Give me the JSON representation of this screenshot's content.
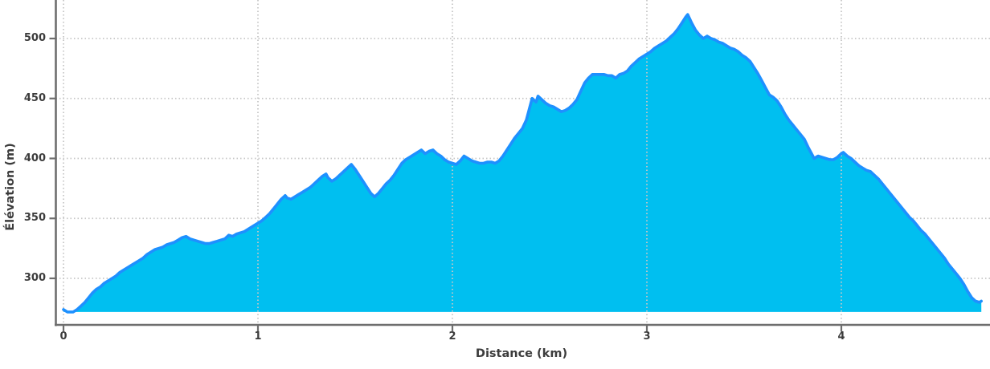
{
  "chart_data": {
    "type": "area",
    "title": "",
    "xlabel": "Distance (km)",
    "ylabel": "Élévation (m)",
    "xticks": [
      0,
      1,
      2,
      3,
      4
    ],
    "xtick_labels": [
      "0",
      "1",
      "2",
      "3",
      "4"
    ],
    "yticks": [
      300,
      350,
      400,
      450,
      500
    ],
    "ytick_labels": [
      "300",
      "350",
      "400",
      "450",
      "500"
    ],
    "xlim": [
      -0.05,
      4.77
    ],
    "ylim": [
      261,
      532
    ],
    "grid": "dotted",
    "legend": "none",
    "baseline_elevation_m": 272,
    "colors": {
      "area_fill": "#00bff0",
      "line": "#1e90ff",
      "grid": "#c6c6c6",
      "spine": "#6e6e6e",
      "text": "#3c3c3c",
      "background": "#ffffff"
    },
    "series": [
      {
        "name": "elevation-profile",
        "x_unit": "km",
        "y_unit": "m",
        "points": [
          [
            0,
            274
          ],
          [
            0.02,
            272
          ],
          [
            0.05,
            272
          ],
          [
            0.07,
            274
          ],
          [
            0.09,
            277
          ],
          [
            0.11,
            280
          ],
          [
            0.13,
            284
          ],
          [
            0.15,
            288
          ],
          [
            0.17,
            291
          ],
          [
            0.19,
            293
          ],
          [
            0.21,
            296
          ],
          [
            0.23,
            298
          ],
          [
            0.25,
            300
          ],
          [
            0.27,
            302
          ],
          [
            0.29,
            305
          ],
          [
            0.31,
            307
          ],
          [
            0.33,
            309
          ],
          [
            0.35,
            311
          ],
          [
            0.37,
            313
          ],
          [
            0.39,
            315
          ],
          [
            0.41,
            317
          ],
          [
            0.43,
            320
          ],
          [
            0.45,
            322
          ],
          [
            0.47,
            324
          ],
          [
            0.49,
            325
          ],
          [
            0.51,
            326
          ],
          [
            0.53,
            328
          ],
          [
            0.55,
            329
          ],
          [
            0.57,
            330
          ],
          [
            0.59,
            332
          ],
          [
            0.61,
            334
          ],
          [
            0.63,
            335
          ],
          [
            0.65,
            333
          ],
          [
            0.67,
            332
          ],
          [
            0.69,
            331
          ],
          [
            0.71,
            330
          ],
          [
            0.73,
            329
          ],
          [
            0.75,
            329
          ],
          [
            0.77,
            330
          ],
          [
            0.79,
            331
          ],
          [
            0.81,
            332
          ],
          [
            0.83,
            333
          ],
          [
            0.85,
            336
          ],
          [
            0.87,
            335
          ],
          [
            0.89,
            337
          ],
          [
            0.91,
            338
          ],
          [
            0.93,
            339
          ],
          [
            0.95,
            341
          ],
          [
            0.97,
            343
          ],
          [
            1,
            346
          ],
          [
            1.02,
            348
          ],
          [
            1.04,
            351
          ],
          [
            1.06,
            354
          ],
          [
            1.08,
            358
          ],
          [
            1.1,
            362
          ],
          [
            1.12,
            366
          ],
          [
            1.14,
            369
          ],
          [
            1.15,
            367
          ],
          [
            1.17,
            366
          ],
          [
            1.19,
            368
          ],
          [
            1.21,
            370
          ],
          [
            1.23,
            372
          ],
          [
            1.25,
            374
          ],
          [
            1.27,
            376
          ],
          [
            1.29,
            379
          ],
          [
            1.31,
            382
          ],
          [
            1.33,
            385
          ],
          [
            1.35,
            387
          ],
          [
            1.36,
            384
          ],
          [
            1.38,
            381
          ],
          [
            1.4,
            383
          ],
          [
            1.42,
            386
          ],
          [
            1.44,
            389
          ],
          [
            1.46,
            392
          ],
          [
            1.48,
            395
          ],
          [
            1.5,
            391
          ],
          [
            1.52,
            386
          ],
          [
            1.54,
            381
          ],
          [
            1.56,
            376
          ],
          [
            1.58,
            371
          ],
          [
            1.6,
            368
          ],
          [
            1.62,
            371
          ],
          [
            1.64,
            375
          ],
          [
            1.66,
            379
          ],
          [
            1.68,
            382
          ],
          [
            1.7,
            386
          ],
          [
            1.72,
            391
          ],
          [
            1.74,
            396
          ],
          [
            1.76,
            399
          ],
          [
            1.78,
            401
          ],
          [
            1.8,
            403
          ],
          [
            1.82,
            405
          ],
          [
            1.84,
            407
          ],
          [
            1.86,
            404
          ],
          [
            1.88,
            406
          ],
          [
            1.9,
            407
          ],
          [
            1.92,
            404
          ],
          [
            1.94,
            402
          ],
          [
            1.96,
            399
          ],
          [
            1.98,
            397
          ],
          [
            2,
            396
          ],
          [
            2.02,
            395
          ],
          [
            2.04,
            398
          ],
          [
            2.06,
            402
          ],
          [
            2.08,
            400
          ],
          [
            2.1,
            398
          ],
          [
            2.12,
            397
          ],
          [
            2.14,
            396
          ],
          [
            2.16,
            396
          ],
          [
            2.18,
            397
          ],
          [
            2.2,
            397
          ],
          [
            2.22,
            396
          ],
          [
            2.24,
            398
          ],
          [
            2.26,
            402
          ],
          [
            2.28,
            407
          ],
          [
            2.3,
            412
          ],
          [
            2.32,
            417
          ],
          [
            2.34,
            421
          ],
          [
            2.36,
            425
          ],
          [
            2.38,
            432
          ],
          [
            2.4,
            444
          ],
          [
            2.41,
            450
          ],
          [
            2.43,
            447
          ],
          [
            2.44,
            452
          ],
          [
            2.46,
            449
          ],
          [
            2.48,
            446
          ],
          [
            2.5,
            444
          ],
          [
            2.52,
            443
          ],
          [
            2.54,
            441
          ],
          [
            2.56,
            439
          ],
          [
            2.58,
            440
          ],
          [
            2.6,
            442
          ],
          [
            2.62,
            445
          ],
          [
            2.64,
            449
          ],
          [
            2.66,
            456
          ],
          [
            2.68,
            463
          ],
          [
            2.7,
            467
          ],
          [
            2.72,
            470
          ],
          [
            2.75,
            470
          ],
          [
            2.78,
            470
          ],
          [
            2.8,
            469
          ],
          [
            2.82,
            469
          ],
          [
            2.84,
            467
          ],
          [
            2.86,
            470
          ],
          [
            2.88,
            471
          ],
          [
            2.9,
            473
          ],
          [
            2.92,
            477
          ],
          [
            2.94,
            480
          ],
          [
            2.96,
            483
          ],
          [
            2.98,
            485
          ],
          [
            3,
            487
          ],
          [
            3.02,
            489
          ],
          [
            3.04,
            492
          ],
          [
            3.06,
            494
          ],
          [
            3.08,
            496
          ],
          [
            3.1,
            498
          ],
          [
            3.12,
            501
          ],
          [
            3.14,
            504
          ],
          [
            3.16,
            508
          ],
          [
            3.18,
            513
          ],
          [
            3.2,
            518
          ],
          [
            3.21,
            520
          ],
          [
            3.23,
            513
          ],
          [
            3.25,
            507
          ],
          [
            3.27,
            503
          ],
          [
            3.29,
            500
          ],
          [
            3.31,
            502
          ],
          [
            3.33,
            500
          ],
          [
            3.35,
            499
          ],
          [
            3.37,
            497
          ],
          [
            3.39,
            496
          ],
          [
            3.41,
            494
          ],
          [
            3.43,
            492
          ],
          [
            3.45,
            491
          ],
          [
            3.47,
            489
          ],
          [
            3.49,
            486
          ],
          [
            3.51,
            484
          ],
          [
            3.53,
            481
          ],
          [
            3.55,
            476
          ],
          [
            3.57,
            471
          ],
          [
            3.59,
            465
          ],
          [
            3.61,
            459
          ],
          [
            3.63,
            453
          ],
          [
            3.65,
            451
          ],
          [
            3.67,
            448
          ],
          [
            3.69,
            443
          ],
          [
            3.71,
            437
          ],
          [
            3.73,
            432
          ],
          [
            3.75,
            428
          ],
          [
            3.77,
            424
          ],
          [
            3.79,
            420
          ],
          [
            3.81,
            416
          ],
          [
            3.83,
            409
          ],
          [
            3.85,
            403
          ],
          [
            3.86,
            400
          ],
          [
            3.88,
            402
          ],
          [
            3.9,
            401
          ],
          [
            3.92,
            400
          ],
          [
            3.94,
            399
          ],
          [
            3.96,
            399
          ],
          [
            3.98,
            401
          ],
          [
            4,
            404
          ],
          [
            4.01,
            405
          ],
          [
            4.03,
            402
          ],
          [
            4.05,
            400
          ],
          [
            4.07,
            397
          ],
          [
            4.09,
            394
          ],
          [
            4.11,
            392
          ],
          [
            4.13,
            390
          ],
          [
            4.15,
            389
          ],
          [
            4.17,
            386
          ],
          [
            4.19,
            383
          ],
          [
            4.21,
            379
          ],
          [
            4.23,
            375
          ],
          [
            4.25,
            371
          ],
          [
            4.27,
            367
          ],
          [
            4.29,
            363
          ],
          [
            4.31,
            359
          ],
          [
            4.33,
            355
          ],
          [
            4.35,
            351
          ],
          [
            4.37,
            348
          ],
          [
            4.39,
            344
          ],
          [
            4.41,
            340
          ],
          [
            4.43,
            337
          ],
          [
            4.45,
            333
          ],
          [
            4.47,
            329
          ],
          [
            4.49,
            325
          ],
          [
            4.51,
            321
          ],
          [
            4.53,
            317
          ],
          [
            4.55,
            312
          ],
          [
            4.57,
            308
          ],
          [
            4.59,
            304
          ],
          [
            4.61,
            300
          ],
          [
            4.63,
            295
          ],
          [
            4.65,
            289
          ],
          [
            4.67,
            284
          ],
          [
            4.69,
            281
          ],
          [
            4.71,
            280
          ],
          [
            4.72,
            281
          ]
        ]
      }
    ]
  }
}
